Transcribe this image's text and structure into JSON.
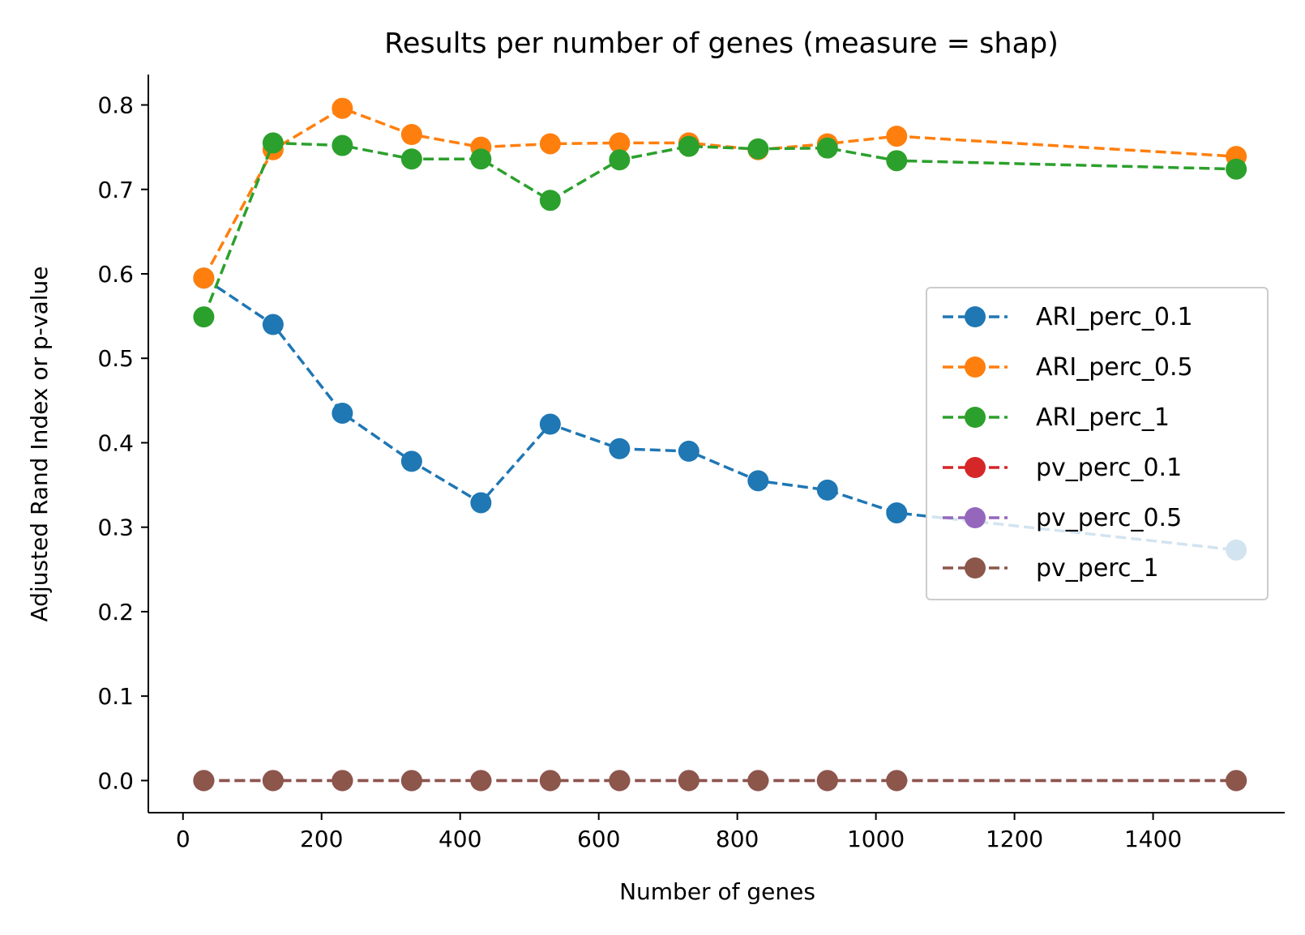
{
  "chart_data": {
    "type": "line",
    "title": "Results per number of genes (measure = shap)",
    "xlabel": "Number of genes",
    "ylabel": "Adjusted Rand Index  or  p-value",
    "xlim": [
      -50,
      1590
    ],
    "ylim": [
      -0.038,
      0.836
    ],
    "xticks": [
      0,
      200,
      400,
      600,
      800,
      1000,
      1200,
      1400
    ],
    "yticks": [
      0.0,
      0.1,
      0.2,
      0.3,
      0.4,
      0.5,
      0.6,
      0.7,
      0.8
    ],
    "grid": false,
    "legend_position": "center-right",
    "x": [
      30,
      130,
      230,
      330,
      430,
      530,
      630,
      730,
      830,
      930,
      1030,
      1520
    ],
    "series": [
      {
        "name": "ARI_perc_0.1",
        "color": "#1f77b4",
        "values": [
          0.595,
          0.54,
          0.435,
          0.378,
          0.329,
          0.422,
          0.393,
          0.39,
          0.355,
          0.344,
          0.317,
          0.273
        ]
      },
      {
        "name": "ARI_perc_0.5",
        "color": "#ff7f0e",
        "values": [
          0.595,
          0.747,
          0.796,
          0.765,
          0.75,
          0.754,
          0.755,
          0.755,
          0.747,
          0.754,
          0.763,
          0.739
        ]
      },
      {
        "name": "ARI_perc_1",
        "color": "#2ca02c",
        "values": [
          0.549,
          0.755,
          0.752,
          0.736,
          0.736,
          0.687,
          0.735,
          0.751,
          0.748,
          0.749,
          0.734,
          0.724
        ]
      },
      {
        "name": "pv_perc_0.1",
        "color": "#d62728",
        "values": [
          0,
          0,
          0,
          0,
          0,
          0,
          0,
          0,
          0,
          0,
          0,
          0
        ]
      },
      {
        "name": "pv_perc_0.5",
        "color": "#9467bd",
        "values": [
          0,
          0,
          0,
          0,
          0,
          0,
          0,
          0,
          0,
          0,
          0,
          0
        ]
      },
      {
        "name": "pv_perc_1",
        "color": "#8c564b",
        "values": [
          0,
          0,
          0,
          0,
          0,
          0,
          0,
          0,
          0,
          0,
          0,
          0
        ]
      }
    ]
  }
}
